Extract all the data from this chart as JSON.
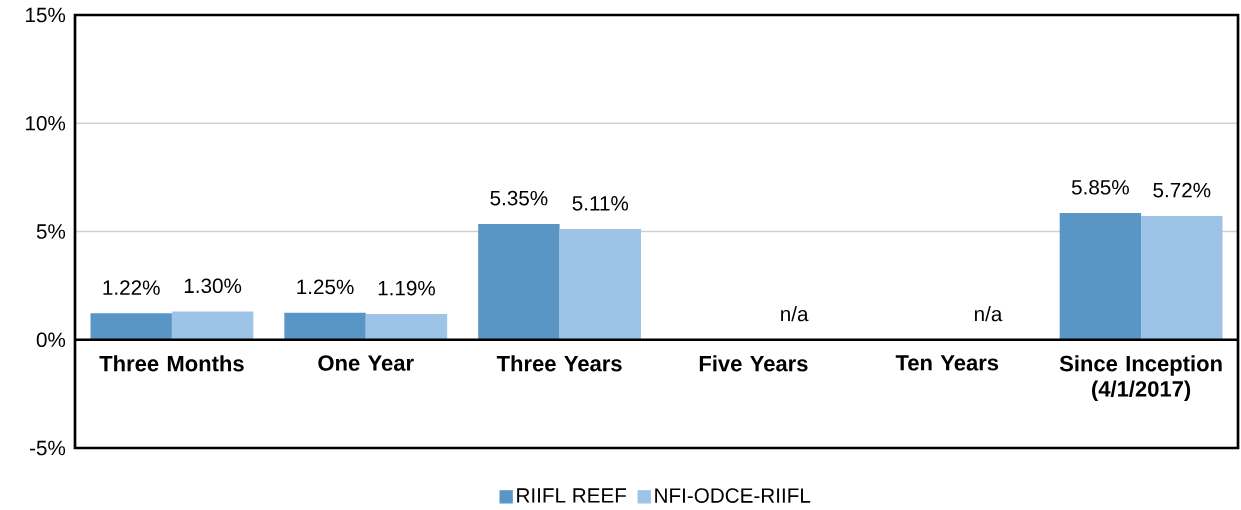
{
  "chart_data": {
    "type": "bar",
    "categories": [
      "Three Months",
      "One Year",
      "Three Years",
      "Five Years",
      "Ten Years",
      "Since Inception (4/1/2017)"
    ],
    "series": [
      {
        "name": "RIIFL REEF",
        "color": "#5a96c5",
        "values": [
          1.22,
          1.25,
          5.35,
          null,
          null,
          5.85
        ],
        "value_labels": [
          "1.22%",
          "1.25%",
          "5.35%",
          null,
          null,
          "5.85%"
        ]
      },
      {
        "name": "NFI-ODCE-RIIFL",
        "color": "#9dc3e6",
        "values": [
          1.3,
          1.19,
          5.11,
          null,
          null,
          5.72
        ],
        "value_labels": [
          "1.30%",
          "1.19%",
          "5.11%",
          "n/a",
          "n/a",
          "5.72%"
        ]
      }
    ],
    "ylim": [
      -5,
      15
    ],
    "yticks": [
      {
        "value": -5,
        "label": "-5%"
      },
      {
        "value": 0,
        "label": "0%"
      },
      {
        "value": 5,
        "label": "5%"
      },
      {
        "value": 10,
        "label": "10%"
      },
      {
        "value": 15,
        "label": "15%"
      }
    ],
    "grid": "y",
    "legend": "bottom"
  }
}
